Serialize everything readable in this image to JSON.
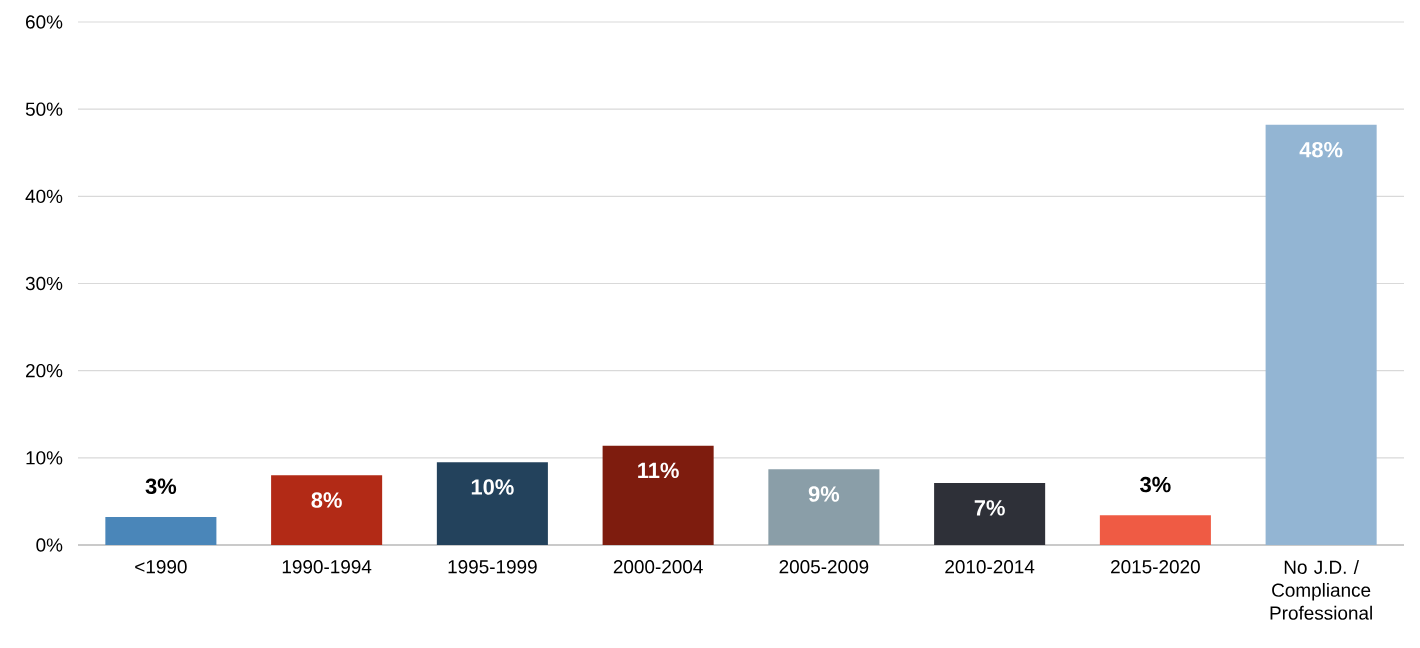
{
  "chart_data": {
    "type": "bar",
    "categories": [
      "<1990",
      "1990-1994",
      "1995-1999",
      "2000-2004",
      "2005-2009",
      "2010-2014",
      "2015-2020",
      "No J.D. / Compliance Professional"
    ],
    "values": [
      3.2,
      8.0,
      9.5,
      11.4,
      8.7,
      7.1,
      3.4,
      48.2
    ],
    "value_labels": [
      "3%",
      "8%",
      "10%",
      "11%",
      "9%",
      "7%",
      "3%",
      "48%"
    ],
    "colors": [
      "#4a86b9",
      "#b22a16",
      "#23425c",
      "#7e1c0e",
      "#8a9ea8",
      "#2e3038",
      "#ef5b44",
      "#93b5d3"
    ],
    "ylim": [
      0,
      60
    ],
    "yticks": [
      {
        "value": 0,
        "label": "0%"
      },
      {
        "value": 10,
        "label": "10%"
      },
      {
        "value": 20,
        "label": "20%"
      },
      {
        "value": 30,
        "label": "30%"
      },
      {
        "value": 40,
        "label": "40%"
      },
      {
        "value": 50,
        "label": "50%"
      },
      {
        "value": 60,
        "label": "60%"
      }
    ],
    "grid": "y"
  }
}
